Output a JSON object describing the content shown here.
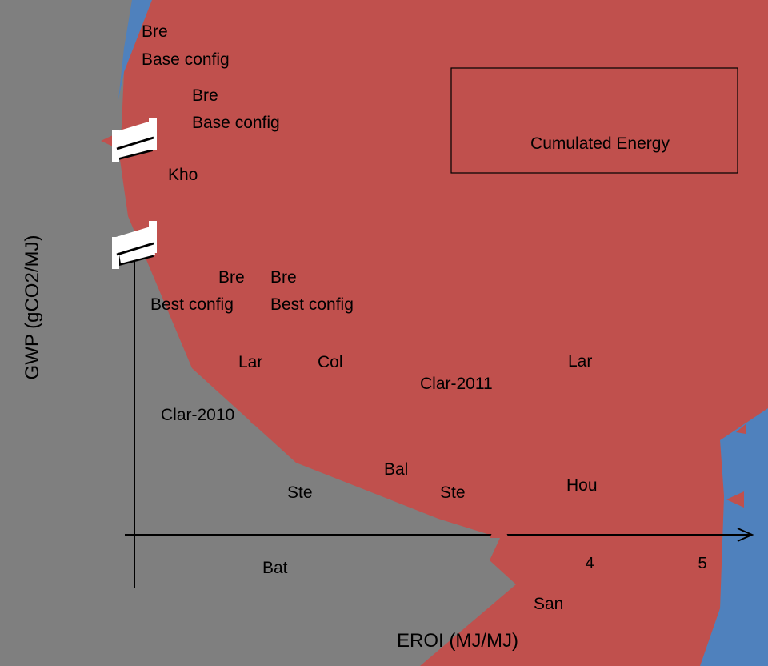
{
  "chart_data": {
    "type": "scatter",
    "xlabel": "EROI (MJ/MJ)",
    "ylabel": "GWP (gCO2/MJ)",
    "x_ticks": [
      "4",
      "5"
    ],
    "legend": {
      "text": "Cumulated Energy",
      "placement": "top-right"
    },
    "regions": [
      {
        "name": "",
        "color": "#c0504d"
      },
      {
        "name": "",
        "color": "#4f81bd"
      },
      {
        "name": "",
        "color": "#7f7f7f"
      }
    ],
    "axis_breaks": 2,
    "points": [
      {
        "label": "Bre",
        "sublabel": "Base config"
      },
      {
        "label": "Bre",
        "sublabel": "Base config"
      },
      {
        "label": "Kho"
      },
      {
        "label": "Bre",
        "sublabel": "Best config"
      },
      {
        "label": "Bre",
        "sublabel": "Best config"
      },
      {
        "label": "Lar"
      },
      {
        "label": "Col"
      },
      {
        "label": "Clar-2011"
      },
      {
        "label": "Lar"
      },
      {
        "label": "Clar-2010"
      },
      {
        "label": "Bal"
      },
      {
        "label": "Ste"
      },
      {
        "label": "Ste"
      },
      {
        "label": "Hou"
      },
      {
        "label": "Bat"
      },
      {
        "label": "San"
      }
    ]
  }
}
